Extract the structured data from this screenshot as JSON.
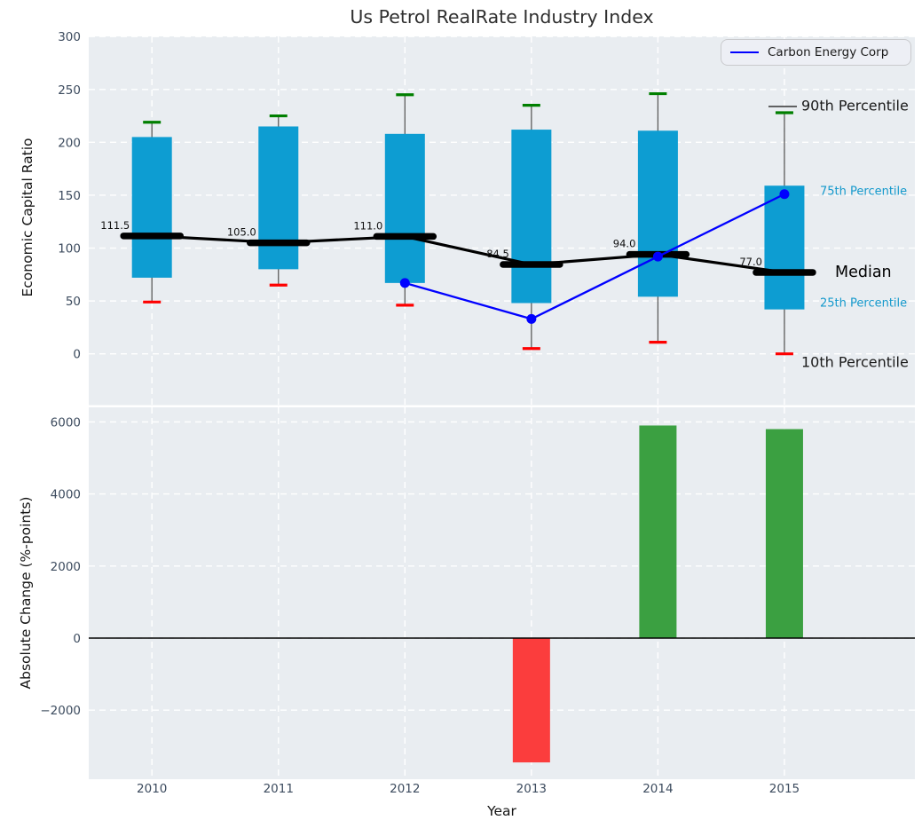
{
  "figure": {
    "title": "Us Petrol RealRate Industry Index"
  },
  "chart_data": [
    {
      "type": "boxplot+line",
      "title": "Us Petrol RealRate Industry Index",
      "ylabel": "Economic Capital Ratio",
      "yticks": [
        0,
        50,
        100,
        150,
        200,
        250,
        300
      ],
      "ylim": [
        -49,
        300
      ],
      "grid": "white dashed, on",
      "categories": [
        "2010",
        "2011",
        "2012",
        "2013",
        "2014",
        "2015"
      ],
      "boxes": {
        "p10": [
          49,
          65,
          46,
          5,
          11,
          0
        ],
        "q25": [
          72,
          80,
          67,
          48,
          54,
          42
        ],
        "median": [
          111.5,
          105.0,
          111.0,
          84.5,
          94.0,
          77.0
        ],
        "q75": [
          205,
          215,
          208,
          212,
          211,
          159
        ],
        "p90": [
          219,
          225,
          245,
          235,
          246,
          228
        ]
      },
      "company_line": {
        "name": "Carbon Energy Corp",
        "x": [
          "2012",
          "2013",
          "2014",
          "2015"
        ],
        "values": [
          67,
          33,
          92,
          151
        ]
      },
      "legend": {
        "label": "Carbon Energy Corp",
        "position": "upper right"
      },
      "annotations": [
        {
          "text": "90th Percentile",
          "color": "#1a1a1a"
        },
        {
          "text": "75th Percentile",
          "color": "#1499cc"
        },
        {
          "text": "Median",
          "color": "#000000"
        },
        {
          "text": "25th Percentile",
          "color": "#1499cc"
        },
        {
          "text": "10th Percentile",
          "color": "#1a1a1a"
        }
      ],
      "colors": {
        "box": "#0d9dd2",
        "p90_cap": "#007f00",
        "p10_cap": "#fe0000",
        "whisker": "#5a5a5a",
        "median_line": "#000000",
        "company_line": "#0000ff",
        "axes_background": "#e9edf1",
        "grid": "#ffffff",
        "tick_label": "#3c4b5e"
      }
    },
    {
      "type": "bar",
      "ylabel": "Absolute Change (%-points)",
      "xlabel": "Year",
      "yticks": [
        -2000,
        0,
        2000,
        4000,
        6000
      ],
      "ylim": [
        -3900,
        6400
      ],
      "grid": "white dashed, on",
      "categories": [
        "2010",
        "2011",
        "2012",
        "2013",
        "2014",
        "2015"
      ],
      "values": [
        null,
        null,
        null,
        -3450,
        5900,
        5800
      ],
      "zero_line": true,
      "colors": {
        "positive_bar": "#3ba041",
        "negative_bar": "#fb3d3d",
        "zero_line": "#000000",
        "axes_background": "#e9edf1",
        "grid": "#ffffff",
        "tick_label": "#3c4b5e"
      }
    }
  ]
}
